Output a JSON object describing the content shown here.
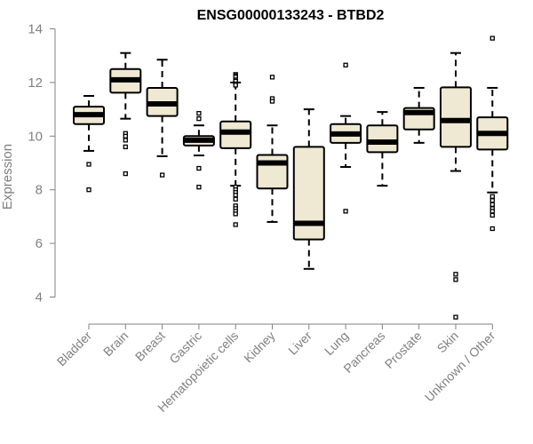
{
  "colors": {
    "box_fill": "#efe8d2",
    "box_stroke": "#000000",
    "axis": "#808080",
    "title": "#000000"
  },
  "chart_data": {
    "type": "boxplot",
    "title": "ENSG00000133243 - BTBD2",
    "xlabel": "",
    "ylabel": "Expression",
    "ylim": [
      3.1,
      14.25
    ],
    "yticks": [
      4,
      6,
      8,
      10,
      12,
      14
    ],
    "yticks_labels": [
      "4",
      "6",
      "8",
      "10",
      "12",
      "14"
    ],
    "categories": [
      "Bladder",
      "Brain",
      "Breast",
      "Gastric",
      "Hematopoietic cells",
      "Kidney",
      "Liver",
      "Lung",
      "Pancreas",
      "Prostate",
      "Skin",
      "Unknown / Other"
    ],
    "boxes": [
      {
        "name": "Bladder",
        "whisker_low": 9.45,
        "q1": 10.45,
        "median": 10.8,
        "q3": 11.1,
        "whisker_high": 11.5,
        "outliers": [
          8.95,
          8.0
        ]
      },
      {
        "name": "Brain",
        "whisker_low": 10.65,
        "q1": 11.62,
        "median": 12.1,
        "q3": 12.5,
        "whisker_high": 13.1,
        "outliers": [
          10.1,
          10.0,
          9.85,
          9.6,
          8.6
        ]
      },
      {
        "name": "Breast",
        "whisker_low": 9.25,
        "q1": 10.75,
        "median": 11.2,
        "q3": 11.8,
        "whisker_high": 12.85,
        "outliers": [
          8.55
        ]
      },
      {
        "name": "Gastric",
        "whisker_low": 9.28,
        "q1": 9.65,
        "median": 9.85,
        "q3": 10.0,
        "whisker_high": 10.4,
        "outliers": [
          10.85,
          10.65,
          8.8,
          8.1
        ]
      },
      {
        "name": "Hematopoietic cells",
        "whisker_low": 8.15,
        "q1": 9.55,
        "median": 10.15,
        "q3": 10.55,
        "whisker_high": 12.0,
        "outliers": [
          12.3,
          12.25,
          12.2,
          12.1,
          12.05,
          11.95,
          11.9,
          8.1,
          8.0,
          7.9,
          7.8,
          7.65,
          7.4,
          7.3,
          7.2,
          7.1,
          6.7
        ]
      },
      {
        "name": "Kidney",
        "whisker_low": 6.8,
        "q1": 8.05,
        "median": 9.0,
        "q3": 9.3,
        "whisker_high": 10.4,
        "outliers": [
          12.2,
          11.4,
          11.3
        ]
      },
      {
        "name": "Liver",
        "whisker_low": 5.05,
        "q1": 6.15,
        "median": 6.75,
        "q3": 9.6,
        "whisker_high": 11.0,
        "outliers": []
      },
      {
        "name": "Lung",
        "whisker_low": 8.85,
        "q1": 9.75,
        "median": 10.08,
        "q3": 10.45,
        "whisker_high": 10.75,
        "outliers": [
          12.65,
          7.2
        ]
      },
      {
        "name": "Pancreas",
        "whisker_low": 8.15,
        "q1": 9.4,
        "median": 9.78,
        "q3": 10.4,
        "whisker_high": 10.9,
        "outliers": []
      },
      {
        "name": "Prostate",
        "whisker_low": 9.75,
        "q1": 10.25,
        "median": 10.88,
        "q3": 11.05,
        "whisker_high": 11.8,
        "outliers": []
      },
      {
        "name": "Skin",
        "whisker_low": 8.7,
        "q1": 9.6,
        "median": 10.58,
        "q3": 11.82,
        "whisker_high": 13.1,
        "outliers": [
          4.85,
          4.65,
          3.25
        ]
      },
      {
        "name": "Unknown / Other",
        "whisker_low": 7.9,
        "q1": 9.5,
        "median": 10.1,
        "q3": 10.7,
        "whisker_high": 11.8,
        "outliers": [
          13.65,
          7.75,
          7.6,
          7.45,
          7.3,
          7.2,
          7.05,
          6.55
        ]
      }
    ],
    "grid": false,
    "legend": "none"
  }
}
